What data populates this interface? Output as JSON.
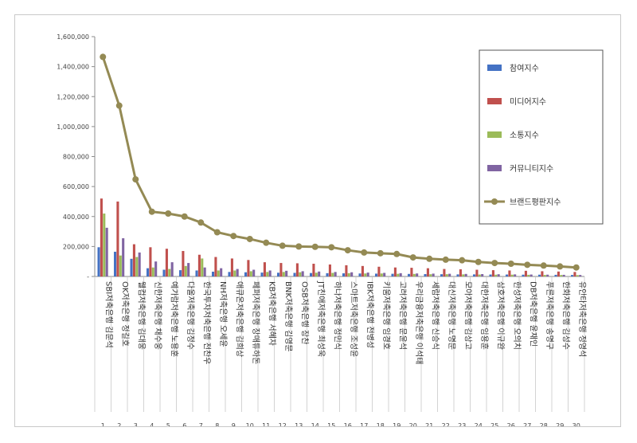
{
  "chart_data": {
    "type": "bar",
    "title": "",
    "xlabel": "",
    "ylabel": "",
    "ylim": [
      0,
      1600000
    ],
    "yticks": [
      "-",
      "200,000",
      "400,000",
      "600,000",
      "800,000",
      "1,000,000",
      "1,200,000",
      "1,400,000",
      "1,600,000"
    ],
    "grid": false,
    "legend_position": "right",
    "ranks": [
      "1",
      "2",
      "3",
      "4",
      "5",
      "6",
      "7",
      "8",
      "9",
      "10",
      "11",
      "12",
      "13",
      "14",
      "15",
      "16",
      "17",
      "18",
      "19",
      "20",
      "21",
      "22",
      "23",
      "24",
      "25",
      "26",
      "27",
      "28",
      "29",
      "30"
    ],
    "categories": [
      "SBI저축은행 김문석",
      "OK저축은행 정길호",
      "웰컴저축은행 김대웅",
      "신한저축은행 채수웅",
      "예가람저축은행 노용훈",
      "다올저축은행 김정수",
      "한국투자저축은행 전찬우",
      "NH저축은행 오세윤",
      "애큐온저축은행 김희상",
      "페퍼저축은행 장매튜하돈",
      "KB저축은행 서혜자",
      "BNK저축은행 김영문",
      "OSB저축은행 장찬",
      "JT친애저축은행 최성욱",
      "하나저축은행 정민식",
      "스마트저축은행 조성윤",
      "IBK저축은행 전병성",
      "키움저축은행 임경호",
      "고려저축은행 문윤석",
      "우리금융저축은행 이석태",
      "세람저축은행 신승식",
      "대신저축은행 노명문",
      "모아저축은행 김상고",
      "대한저축은행 임용훈",
      "삼호저축은행 이규완",
      "한성저축은행 오의치",
      "DB저축은행 윤재인",
      "푸른저축은행 송명구",
      "한화저축은행 김성수",
      "유안타저축은행 정영석"
    ],
    "series": [
      {
        "name": "참여지수",
        "type": "bar",
        "color": "#4472c4",
        "values": [
          195000,
          165000,
          118000,
          55000,
          45000,
          42000,
          40000,
          32000,
          30000,
          28000,
          26000,
          25000,
          24000,
          23000,
          22000,
          21000,
          20000,
          19000,
          18000,
          17000,
          16000,
          15000,
          14000,
          14000,
          13000,
          13000,
          12000,
          12000,
          11000,
          10000
        ]
      },
      {
        "name": "미디어지수",
        "type": "bar",
        "color": "#c0504d",
        "values": [
          520000,
          500000,
          215000,
          195000,
          185000,
          170000,
          145000,
          130000,
          120000,
          110000,
          95000,
          90000,
          88000,
          85000,
          80000,
          75000,
          70000,
          65000,
          60000,
          58000,
          55000,
          50000,
          48000,
          45000,
          42000,
          40000,
          38000,
          35000,
          33000,
          30000
        ]
      },
      {
        "name": "소통지수",
        "type": "bar",
        "color": "#9bbb59",
        "values": [
          420000,
          140000,
          130000,
          60000,
          50000,
          70000,
          120000,
          40000,
          40000,
          35000,
          30000,
          30000,
          28000,
          25000,
          24000,
          22000,
          20000,
          20000,
          18000,
          17000,
          15000,
          15000,
          14000,
          13000,
          12000,
          12000,
          11000,
          10000,
          10000,
          9000
        ]
      },
      {
        "name": "커뮤니티지수",
        "type": "bar",
        "color": "#8064a2",
        "values": [
          325000,
          255000,
          160000,
          100000,
          95000,
          90000,
          60000,
          55000,
          50000,
          45000,
          40000,
          38000,
          35000,
          33000,
          30000,
          28000,
          26000,
          24000,
          22000,
          20000,
          19000,
          18000,
          17000,
          16000,
          15000,
          14000,
          13000,
          12000,
          11000,
          10000
        ]
      },
      {
        "name": "브랜드평판지수",
        "type": "line",
        "color": "#948a54",
        "values": [
          1465000,
          1140000,
          648000,
          432000,
          420000,
          400000,
          360000,
          295000,
          270000,
          250000,
          225000,
          205000,
          200000,
          198000,
          195000,
          175000,
          160000,
          155000,
          150000,
          127000,
          118000,
          112000,
          108000,
          97000,
          90000,
          85000,
          78000,
          73000,
          67000,
          60000
        ]
      }
    ]
  }
}
